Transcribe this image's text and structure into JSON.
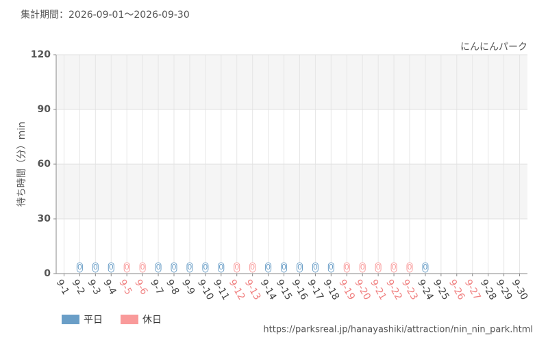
{
  "chart_data": {
    "type": "bar",
    "title": "集計期間：2026-09-01～2026-09-30",
    "subtitle": "にんにんパーク",
    "y_label": "待ち時間（分）min",
    "source": "https://parksreal.jp/hanayashiki/attraction/nin_nin_park.html",
    "categories": [
      "9-1",
      "9-2",
      "9-3",
      "9-4",
      "9-5",
      "9-6",
      "9-7",
      "9-8",
      "9-9",
      "9-10",
      "9-11",
      "9-12",
      "9-13",
      "9-14",
      "9-15",
      "9-16",
      "9-17",
      "9-18",
      "9-19",
      "9-20",
      "9-21",
      "9-22",
      "9-23",
      "9-24",
      "9-25",
      "9-26",
      "9-27",
      "9-28",
      "9-29",
      "9-30"
    ],
    "category_colors": [
      "#444",
      "#444",
      "#444",
      "#444",
      "#f08080",
      "#f08080",
      "#444",
      "#444",
      "#444",
      "#444",
      "#444",
      "#f08080",
      "#f08080",
      "#444",
      "#444",
      "#444",
      "#444",
      "#444",
      "#f08080",
      "#f08080",
      "#f08080",
      "#f08080",
      "#f08080",
      "#444",
      "#444",
      "#f08080",
      "#f08080",
      "#444",
      "#444",
      "#444"
    ],
    "series": [
      {
        "name": "平日",
        "color": "#6a9ec7",
        "values": [
          null,
          0,
          0,
          0,
          null,
          null,
          0,
          0,
          0,
          0,
          0,
          null,
          null,
          0,
          0,
          0,
          0,
          0,
          null,
          null,
          null,
          null,
          null,
          0,
          null,
          null,
          null,
          null,
          null,
          null
        ]
      },
      {
        "name": "休日",
        "color": "#f99a9a",
        "values": [
          null,
          null,
          null,
          null,
          0,
          0,
          null,
          null,
          null,
          null,
          null,
          0,
          0,
          null,
          null,
          null,
          null,
          null,
          0,
          0,
          0,
          0,
          0,
          null,
          null,
          null,
          null,
          null,
          null,
          null
        ]
      }
    ],
    "ylim": [
      0,
      120
    ],
    "yticks": [
      0,
      30,
      60,
      90,
      120
    ],
    "grid": true
  }
}
